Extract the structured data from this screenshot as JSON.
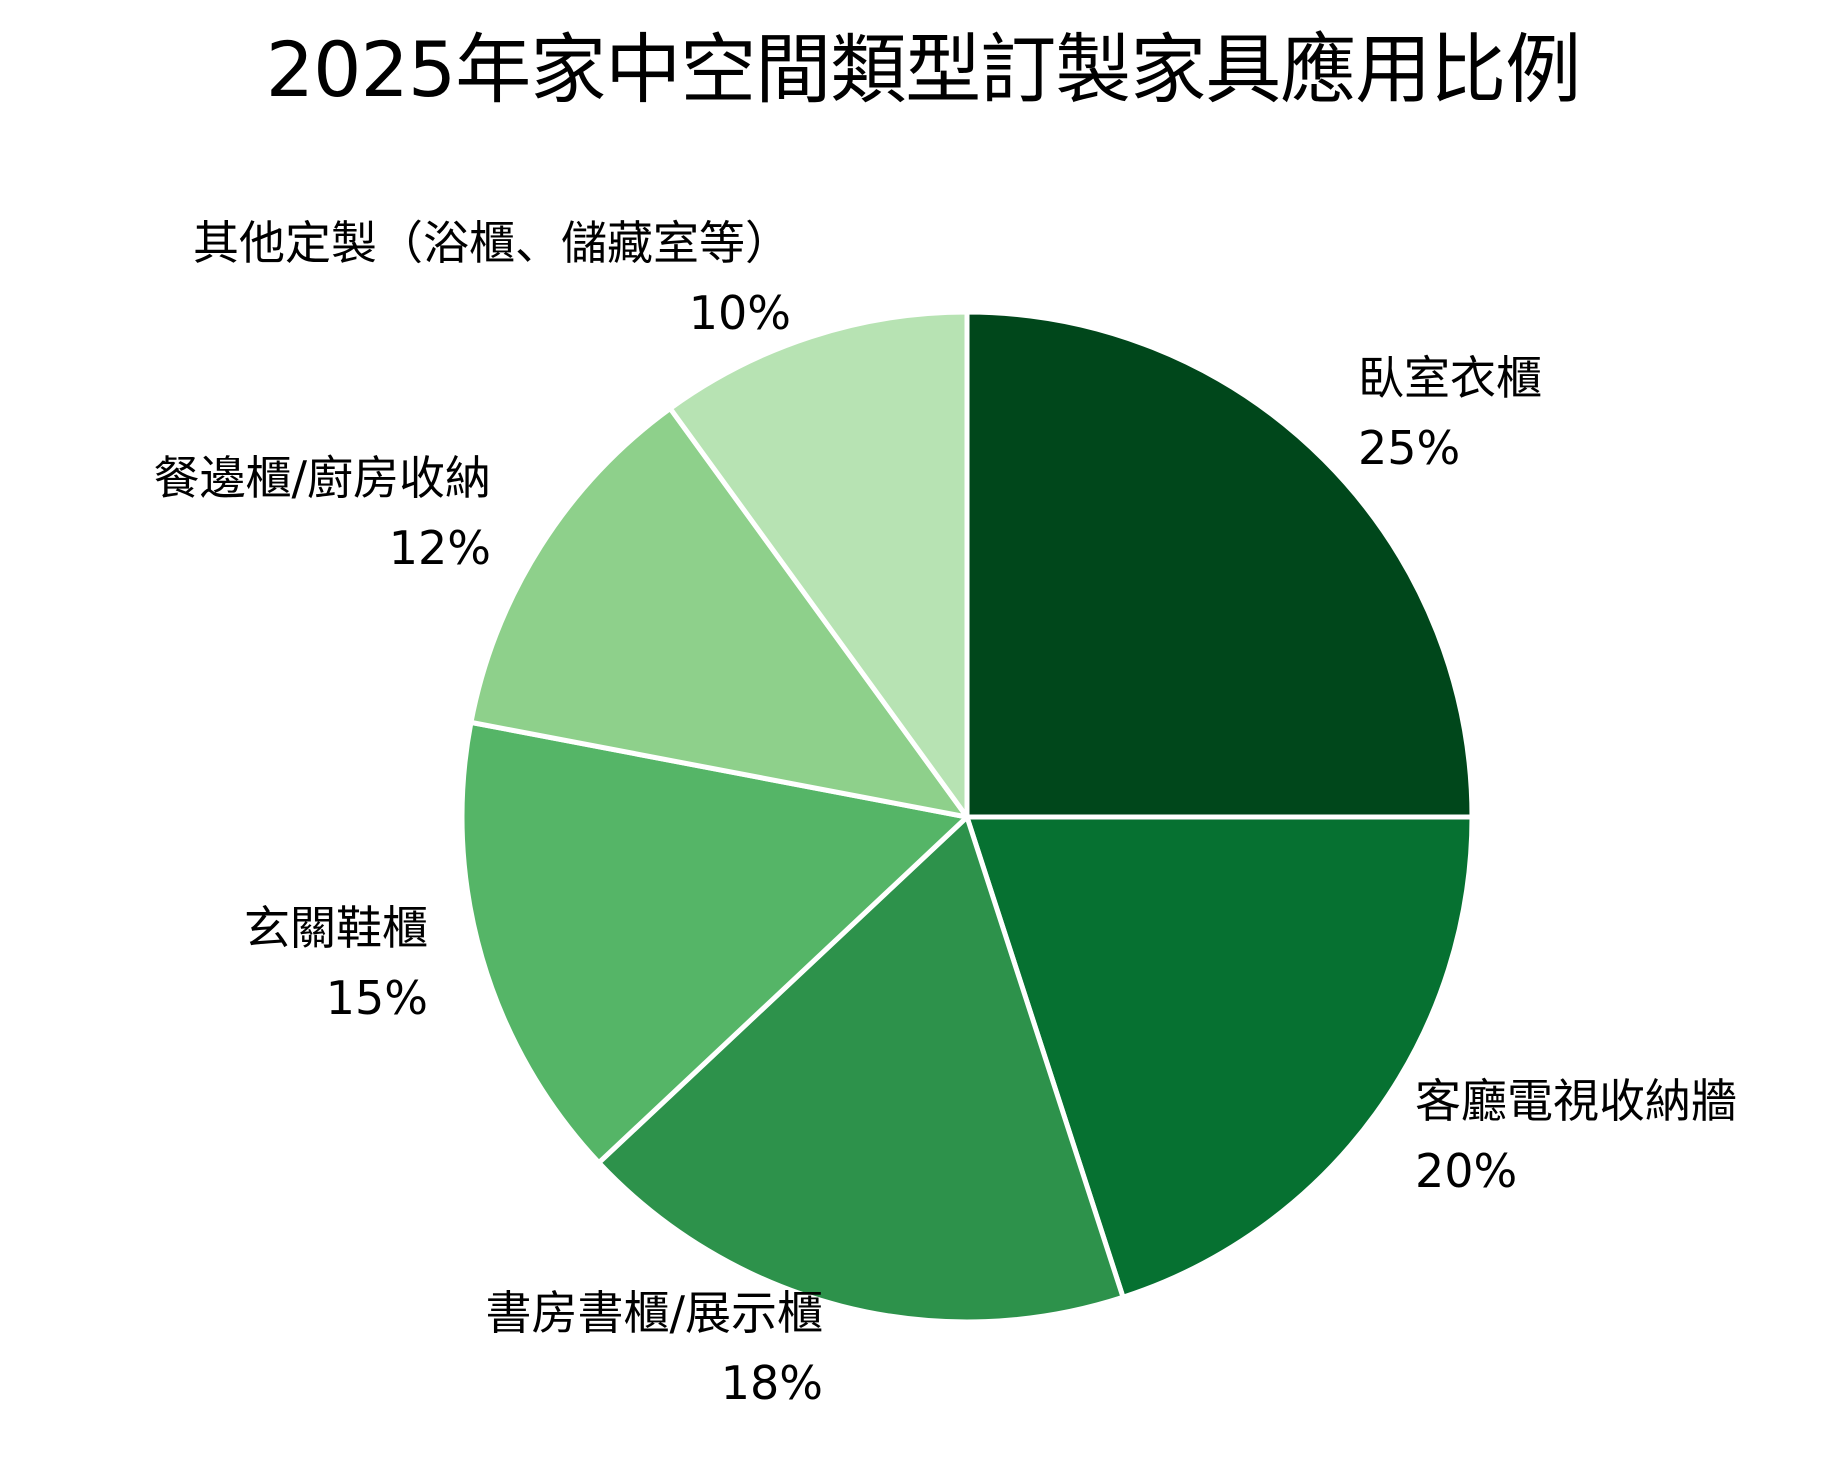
{
  "title": "2025年家中空間類型訂製家具應用比例",
  "chart_data": {
    "type": "pie",
    "title": "2025年家中空間類型訂製家具應用比例",
    "start_angle": "12 o'clock, clockwise",
    "categories": [
      "臥室衣櫃",
      "客廳電視收納牆",
      "書房書櫃/展示櫃",
      "玄關鞋櫃",
      "餐邊櫃/廚房收納",
      "其他定製（浴櫃、儲藏室等）"
    ],
    "values": [
      25,
      20,
      18,
      15,
      12,
      10
    ],
    "unit": "%",
    "colors": [
      "#00471b",
      "#067131",
      "#2d924b",
      "#55b567",
      "#8ed08b",
      "#b7e3b3"
    ],
    "slices": [
      {
        "label": "臥室衣櫃",
        "value": 25,
        "pct": "25%",
        "color": "#00471b"
      },
      {
        "label": "客廳電視收納牆",
        "value": 20,
        "pct": "20%",
        "color": "#067131"
      },
      {
        "label": "書房書櫃/展示櫃",
        "value": 18,
        "pct": "18%",
        "color": "#2d924b"
      },
      {
        "label": "玄關鞋櫃",
        "value": 15,
        "pct": "15%",
        "color": "#55b567"
      },
      {
        "label": "餐邊櫃/廚房收納",
        "value": 12,
        "pct": "12%",
        "color": "#8ed08b"
      },
      {
        "label": "其他定製（浴櫃、儲藏室等）",
        "value": 10,
        "pct": "10%",
        "color": "#b7e3b3"
      }
    ],
    "legend": "none (outside data labels)"
  }
}
